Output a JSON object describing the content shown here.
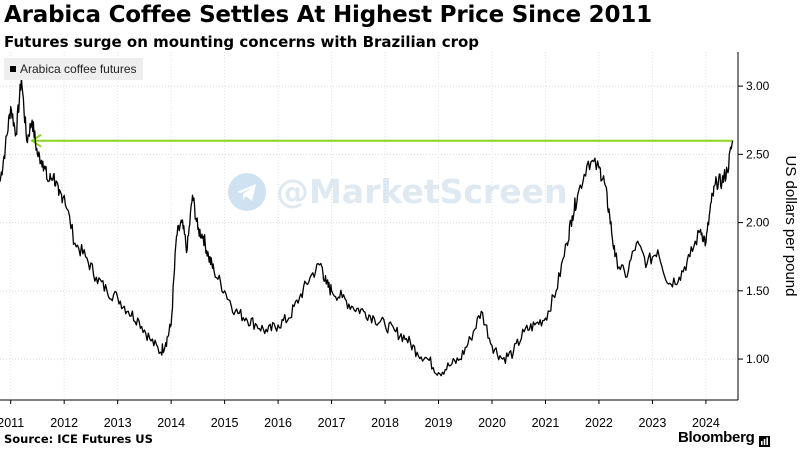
{
  "chart_data": {
    "type": "line",
    "title": "Arabica Coffee Settles At Highest Price Since 2011",
    "subtitle": "Futures surge on mounting concerns with Brazilian crop",
    "ylabel": "US dollars per pound",
    "xlabel": "",
    "ylim": [
      0.7,
      3.25
    ],
    "yticks": [
      1.0,
      1.5,
      2.0,
      2.5,
      3.0
    ],
    "ytick_labels": [
      "1.00",
      "1.50",
      "2.00",
      "2.50",
      "3.00"
    ],
    "xlim": [
      2010.8,
      2024.6
    ],
    "xticks": [
      2011,
      2012,
      2013,
      2014,
      2015,
      2016,
      2017,
      2018,
      2019,
      2020,
      2021,
      2022,
      2023,
      2024
    ],
    "xtick_labels": [
      "2011",
      "2012",
      "2013",
      "2014",
      "2015",
      "2016",
      "2017",
      "2018",
      "2019",
      "2020",
      "2021",
      "2022",
      "2023",
      "2024"
    ],
    "grid": "horizontal",
    "legend": "top-left",
    "series": [
      {
        "name": "Arabica coffee futures",
        "color": "#000000",
        "x": [
          2010.8,
          2010.9,
          2011.0,
          2011.1,
          2011.2,
          2011.3,
          2011.4,
          2011.5,
          2011.6,
          2011.7,
          2011.8,
          2011.9,
          2012.0,
          2012.2,
          2012.4,
          2012.6,
          2012.8,
          2013.0,
          2013.2,
          2013.4,
          2013.6,
          2013.8,
          2013.9,
          2014.0,
          2014.1,
          2014.2,
          2014.3,
          2014.4,
          2014.5,
          2014.6,
          2014.7,
          2014.8,
          2015.0,
          2015.2,
          2015.4,
          2015.6,
          2015.8,
          2016.0,
          2016.2,
          2016.4,
          2016.6,
          2016.8,
          2016.9,
          2017.0,
          2017.2,
          2017.4,
          2017.6,
          2017.8,
          2018.0,
          2018.2,
          2018.4,
          2018.6,
          2018.8,
          2019.0,
          2019.2,
          2019.4,
          2019.6,
          2019.8,
          2020.0,
          2020.2,
          2020.4,
          2020.6,
          2020.8,
          2021.0,
          2021.2,
          2021.4,
          2021.5,
          2021.6,
          2021.8,
          2022.0,
          2022.1,
          2022.2,
          2022.3,
          2022.5,
          2022.7,
          2022.9,
          2023.1,
          2023.3,
          2023.5,
          2023.7,
          2023.9,
          2024.0,
          2024.1,
          2024.2,
          2024.3,
          2024.4,
          2024.5
        ],
        "y": [
          2.3,
          2.55,
          2.85,
          2.65,
          3.06,
          2.6,
          2.75,
          2.5,
          2.45,
          2.3,
          2.35,
          2.2,
          2.2,
          1.85,
          1.75,
          1.6,
          1.5,
          1.45,
          1.35,
          1.28,
          1.15,
          1.05,
          1.12,
          1.25,
          1.9,
          2.0,
          1.8,
          2.2,
          1.95,
          1.9,
          1.75,
          1.65,
          1.5,
          1.35,
          1.3,
          1.25,
          1.2,
          1.25,
          1.3,
          1.45,
          1.6,
          1.7,
          1.55,
          1.5,
          1.45,
          1.38,
          1.35,
          1.3,
          1.25,
          1.2,
          1.15,
          1.05,
          1.0,
          0.9,
          0.95,
          1.0,
          1.15,
          1.35,
          1.1,
          1.0,
          1.05,
          1.2,
          1.25,
          1.3,
          1.5,
          1.85,
          2.05,
          2.2,
          2.45,
          2.4,
          2.3,
          2.05,
          1.75,
          1.6,
          1.85,
          1.7,
          1.8,
          1.55,
          1.6,
          1.75,
          1.95,
          1.85,
          2.15,
          2.3,
          2.3,
          2.38,
          2.6
        ]
      }
    ],
    "annotations": [
      {
        "type": "arrow",
        "from_x": 2024.5,
        "to_x": 2011.4,
        "y": 2.6,
        "color": "#8dd323"
      }
    ]
  },
  "source": "Source: ICE Futures US",
  "brand": "Bloomberg",
  "watermark": "@MarketScreen"
}
